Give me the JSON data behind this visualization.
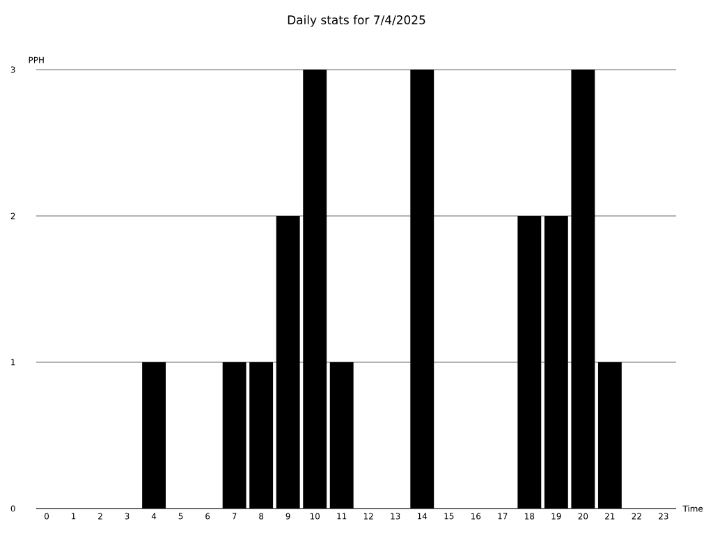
{
  "chart_data": {
    "type": "bar",
    "title": "Daily stats for 7/4/2025",
    "xlabel": "Time",
    "ylabel": "PPH",
    "categories": [
      "0",
      "1",
      "2",
      "3",
      "4",
      "5",
      "6",
      "7",
      "8",
      "9",
      "10",
      "11",
      "12",
      "13",
      "14",
      "15",
      "16",
      "17",
      "18",
      "19",
      "20",
      "21",
      "22",
      "23"
    ],
    "values": [
      0,
      0,
      0,
      0,
      1,
      0,
      0,
      1,
      1,
      2,
      3,
      1,
      0,
      0,
      3,
      0,
      0,
      0,
      2,
      2,
      3,
      1,
      0,
      0
    ],
    "color": "#000000",
    "ylim": [
      0,
      3
    ],
    "yticks": [
      0,
      1,
      2,
      3
    ],
    "grid": "y"
  }
}
